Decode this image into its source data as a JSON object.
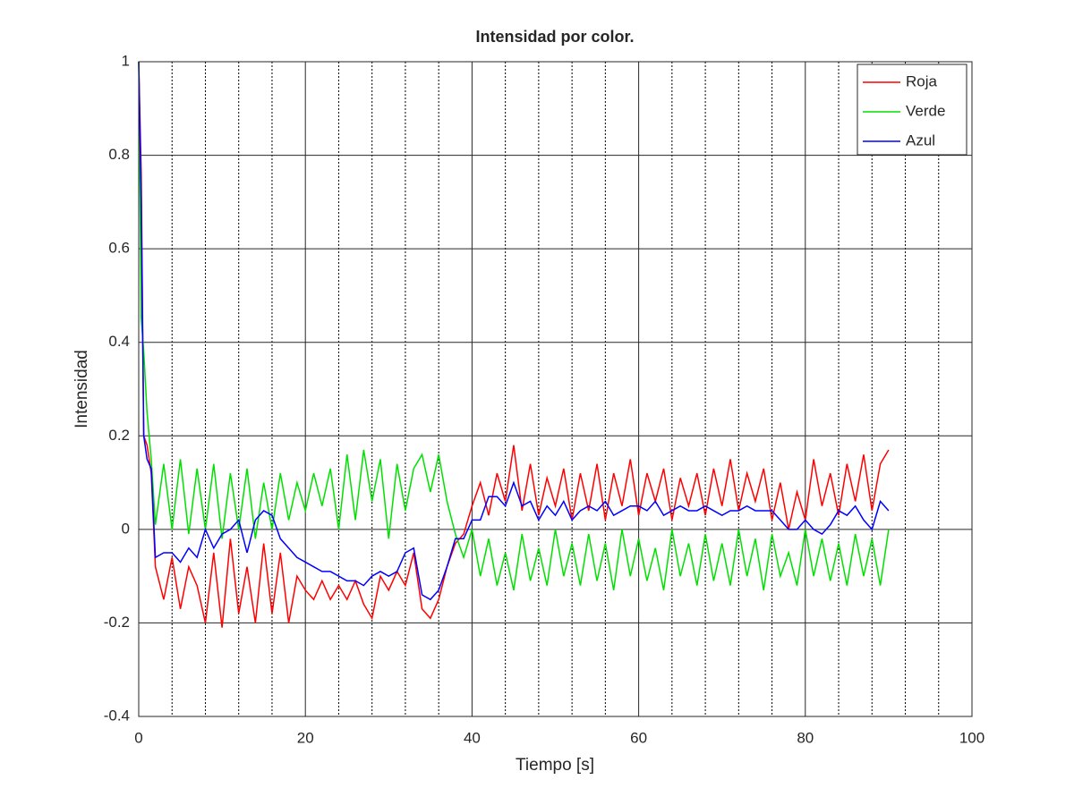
{
  "chart_data": {
    "type": "line",
    "title": "Intensidad por color.",
    "xlabel": "Tiempo [s]",
    "ylabel": "Intensidad",
    "x": [
      0,
      0.3,
      0.6,
      1,
      1.5,
      2,
      3,
      4,
      5,
      6,
      7,
      8,
      9,
      10,
      11,
      12,
      13,
      14,
      15,
      16,
      17,
      18,
      19,
      20,
      21,
      22,
      23,
      24,
      25,
      26,
      27,
      28,
      29,
      30,
      31,
      32,
      33,
      34,
      35,
      36,
      37,
      38,
      39,
      40,
      41,
      42,
      43,
      44,
      45,
      46,
      47,
      48,
      49,
      50,
      51,
      52,
      53,
      54,
      55,
      56,
      57,
      58,
      59,
      60,
      61,
      62,
      63,
      64,
      65,
      66,
      67,
      68,
      69,
      70,
      71,
      72,
      73,
      74,
      75,
      76,
      77,
      78,
      79,
      80,
      81,
      82,
      83,
      84,
      85,
      86,
      87,
      88,
      89,
      90
    ],
    "series": [
      {
        "name": "Roja",
        "color": "#ff0000",
        "values": [
          1,
          0.76,
          0.2,
          0.18,
          0.12,
          -0.08,
          -0.15,
          -0.06,
          -0.17,
          -0.08,
          -0.12,
          -0.2,
          -0.05,
          -0.21,
          -0.02,
          -0.18,
          -0.08,
          -0.2,
          -0.03,
          -0.18,
          -0.05,
          -0.2,
          -0.1,
          -0.13,
          -0.15,
          -0.11,
          -0.15,
          -0.12,
          -0.15,
          -0.11,
          -0.16,
          -0.19,
          -0.1,
          -0.13,
          -0.09,
          -0.12,
          -0.05,
          -0.17,
          -0.19,
          -0.15,
          -0.08,
          -0.03,
          -0.01,
          0.05,
          0.1,
          0.03,
          0.12,
          0.06,
          0.18,
          0.04,
          0.14,
          0.03,
          0.11,
          0.05,
          0.13,
          0.02,
          0.12,
          0.04,
          0.14,
          0.02,
          0.12,
          0.05,
          0.15,
          0.03,
          0.12,
          0.06,
          0.13,
          0.02,
          0.11,
          0.05,
          0.12,
          0.03,
          0.13,
          0.05,
          0.15,
          0.04,
          0.12,
          0.06,
          0.13,
          0.02,
          0.1,
          0.0,
          0.08,
          0.02,
          0.15,
          0.05,
          0.12,
          0.03,
          0.14,
          0.06,
          0.16,
          0.04,
          0.14,
          0.17
        ]
      },
      {
        "name": "Verde",
        "color": "#00e000",
        "values": [
          1,
          0.45,
          0.38,
          0.25,
          0.15,
          0.01,
          0.14,
          0.0,
          0.15,
          -0.01,
          0.13,
          0.0,
          0.14,
          -0.02,
          0.12,
          0.0,
          0.13,
          -0.02,
          0.1,
          0.0,
          0.12,
          0.02,
          0.1,
          0.04,
          0.12,
          0.05,
          0.13,
          0.0,
          0.16,
          0.02,
          0.17,
          0.06,
          0.15,
          -0.02,
          0.14,
          0.04,
          0.13,
          0.16,
          0.08,
          0.16,
          0.06,
          -0.01,
          -0.06,
          0.0,
          -0.1,
          -0.02,
          -0.12,
          -0.05,
          -0.13,
          -0.01,
          -0.11,
          -0.04,
          -0.12,
          0.0,
          -0.1,
          -0.03,
          -0.12,
          -0.01,
          -0.11,
          -0.03,
          -0.13,
          0.0,
          -0.1,
          -0.02,
          -0.11,
          -0.04,
          -0.13,
          0.0,
          -0.1,
          -0.03,
          -0.12,
          -0.01,
          -0.11,
          -0.03,
          -0.12,
          0.0,
          -0.1,
          -0.02,
          -0.13,
          -0.01,
          -0.1,
          -0.05,
          -0.12,
          0.0,
          -0.1,
          -0.02,
          -0.11,
          -0.03,
          -0.12,
          -0.01,
          -0.1,
          -0.02,
          -0.12,
          0.0
        ]
      },
      {
        "name": "Azul",
        "color": "#0000ff",
        "values": [
          1,
          0.7,
          0.2,
          0.15,
          0.13,
          -0.06,
          -0.05,
          -0.05,
          -0.07,
          -0.04,
          -0.06,
          0.0,
          -0.04,
          -0.01,
          0.0,
          0.02,
          -0.05,
          0.02,
          0.04,
          0.03,
          -0.02,
          -0.04,
          -0.06,
          -0.07,
          -0.08,
          -0.09,
          -0.09,
          -0.1,
          -0.11,
          -0.11,
          -0.12,
          -0.1,
          -0.09,
          -0.1,
          -0.09,
          -0.05,
          -0.04,
          -0.14,
          -0.15,
          -0.13,
          -0.08,
          -0.02,
          -0.02,
          0.02,
          0.02,
          0.07,
          0.07,
          0.05,
          0.1,
          0.05,
          0.06,
          0.02,
          0.05,
          0.03,
          0.06,
          0.02,
          0.04,
          0.05,
          0.04,
          0.06,
          0.03,
          0.04,
          0.05,
          0.05,
          0.04,
          0.06,
          0.03,
          0.04,
          0.05,
          0.04,
          0.04,
          0.05,
          0.04,
          0.03,
          0.04,
          0.04,
          0.05,
          0.04,
          0.04,
          0.04,
          0.02,
          0.0,
          0.0,
          0.02,
          0.0,
          -0.01,
          0.01,
          0.04,
          0.03,
          0.05,
          0.02,
          0.0,
          0.06,
          0.04
        ]
      }
    ],
    "xlim": [
      0,
      100
    ],
    "xticks": [
      0,
      20,
      40,
      60,
      80,
      100
    ],
    "xminorticks": [
      4,
      8,
      12,
      16,
      24,
      28,
      32,
      36,
      44,
      48,
      52,
      56,
      64,
      68,
      72,
      76,
      84,
      88,
      92,
      96
    ],
    "ylim": [
      -0.4,
      1
    ],
    "yticks": [
      -0.4,
      -0.2,
      0,
      0.2,
      0.4,
      0.6,
      0.8,
      1
    ],
    "grid": true,
    "legend": "northeast"
  }
}
